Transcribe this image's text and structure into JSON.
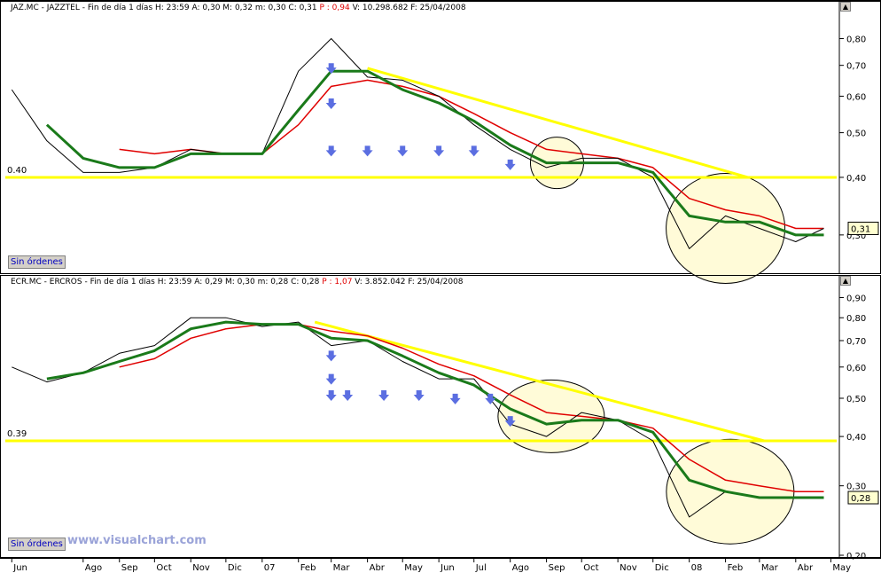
{
  "watermark": "www.visualchart.com",
  "chart_data": [
    {
      "type": "line",
      "title": "JAZ.MC - JAZZTEL - Fin de día 1 días",
      "ohlc": {
        "H": "23:59",
        "A": "0,30",
        "M": "0,32",
        "m": "0,30",
        "C": "0,31"
      },
      "P": "0,94",
      "V": "10.298.682",
      "F": "25/04/2008",
      "button": "Sin órdenes",
      "support_label": "0.40",
      "last_price": "0,31",
      "y_ticks": [
        "0,80",
        "0,70",
        "0,60",
        "0,50",
        "0,40",
        "0,30"
      ],
      "ylim": [
        0.25,
        0.92
      ],
      "log_scale": true,
      "grid": false,
      "colors": {
        "price": "#000000",
        "ma_fast": "#1a7a1a",
        "ma_slow": "#e00000",
        "trend": "#ffff00",
        "arrow": "#5b6ee1",
        "ellipse": "#fffbd8"
      },
      "x_dates": [
        "2006-06",
        "2006-07",
        "2006-08",
        "2006-09",
        "2006-10",
        "2006-11",
        "2006-12",
        "2007-01",
        "2007-02",
        "2007-03",
        "2007-04",
        "2007-05",
        "2007-06",
        "2007-07",
        "2007-08",
        "2007-09",
        "2007-10",
        "2007-11",
        "2007-12",
        "2008-01",
        "2008-02",
        "2008-03",
        "2008-04",
        "2008-04-25"
      ],
      "series": [
        {
          "values": [
            0.62,
            0.48,
            0.41,
            0.41,
            0.42,
            0.46,
            0.45,
            0.45,
            0.68,
            0.8,
            0.66,
            0.65,
            0.6,
            0.52,
            0.46,
            0.42,
            0.44,
            0.44,
            0.4,
            0.28,
            0.33,
            0.31,
            0.29,
            0.31
          ]
        },
        {
          "values": [
            null,
            0.52,
            0.44,
            0.42,
            0.42,
            0.45,
            0.45,
            0.45,
            0.56,
            0.68,
            0.68,
            0.62,
            0.58,
            0.53,
            0.47,
            0.43,
            0.43,
            0.43,
            0.41,
            0.33,
            0.32,
            0.32,
            0.3,
            0.3
          ]
        },
        {
          "values": [
            null,
            null,
            null,
            0.46,
            0.45,
            0.46,
            0.45,
            0.45,
            0.52,
            0.63,
            0.65,
            0.63,
            0.6,
            0.55,
            0.5,
            0.46,
            0.45,
            0.44,
            0.42,
            0.36,
            0.34,
            0.33,
            0.31,
            0.31
          ]
        }
      ],
      "trendline": [
        [
          "2007-04",
          0.69
        ],
        [
          "2008-02-20",
          0.4
        ]
      ],
      "support": 0.4,
      "arrows": [
        [
          "2007-03-01",
          0.68
        ],
        [
          "2007-03-01",
          0.57
        ],
        [
          "2007-03-01",
          0.45
        ],
        [
          "2007-04-01",
          0.45
        ],
        [
          "2007-05-01",
          0.45
        ],
        [
          "2007-06-01",
          0.45
        ],
        [
          "2007-07-01",
          0.45
        ],
        [
          "2007-08-01",
          0.42
        ]
      ],
      "ellipses": [
        [
          "2007-09-10",
          0.43,
          30,
          29
        ],
        [
          "2008-02-01",
          0.31,
          67,
          62
        ]
      ]
    },
    {
      "type": "line",
      "title": "ECR.MC - ERCROS - Fin de día 1 días",
      "ohlc": {
        "H": "23:59",
        "A": "0,29",
        "M": "0,30",
        "m": "0,28",
        "C": "0,28"
      },
      "P": "1,07",
      "V": "3.852.042",
      "F": "25/04/2008",
      "button": "Sin órdenes",
      "support_label": "0.39",
      "last_price": "0,28",
      "y_ticks": [
        "0,90",
        "0,80",
        "0,70",
        "0,60",
        "0,50",
        "0,40",
        "0,30",
        "0,20"
      ],
      "ylim": [
        0.2,
        0.97
      ],
      "log_scale": true,
      "grid": false,
      "colors": {
        "price": "#000000",
        "ma_fast": "#1a7a1a",
        "ma_slow": "#e00000",
        "trend": "#ffff00",
        "arrow": "#5b6ee1",
        "ellipse": "#fffbd8"
      },
      "x_dates": [
        "2006-06",
        "2006-07",
        "2006-08",
        "2006-09",
        "2006-10",
        "2006-11",
        "2006-12",
        "2007-01",
        "2007-02",
        "2007-03",
        "2007-04",
        "2007-05",
        "2007-06",
        "2007-07",
        "2007-08",
        "2007-09",
        "2007-10",
        "2007-11",
        "2007-12",
        "2008-01",
        "2008-02",
        "2008-03",
        "2008-04",
        "2008-04-25"
      ],
      "series": [
        {
          "values": [
            0.6,
            0.55,
            0.58,
            0.65,
            0.68,
            0.8,
            0.8,
            0.76,
            0.78,
            0.68,
            0.7,
            0.62,
            0.56,
            0.56,
            0.43,
            0.4,
            0.46,
            0.44,
            0.39,
            0.25,
            0.29,
            0.28,
            0.28,
            0.28
          ]
        },
        {
          "values": [
            null,
            0.56,
            0.58,
            0.62,
            0.66,
            0.75,
            0.78,
            0.77,
            0.77,
            0.71,
            0.7,
            0.64,
            0.58,
            0.54,
            0.47,
            0.43,
            0.44,
            0.44,
            0.41,
            0.31,
            0.29,
            0.28,
            0.28,
            0.28
          ]
        },
        {
          "values": [
            null,
            null,
            null,
            0.6,
            0.63,
            0.71,
            0.75,
            0.77,
            0.77,
            0.74,
            0.72,
            0.67,
            0.61,
            0.57,
            0.51,
            0.46,
            0.45,
            0.44,
            0.42,
            0.35,
            0.31,
            0.3,
            0.29,
            0.29
          ]
        }
      ],
      "trendline": [
        [
          "2007-02-15",
          0.78
        ],
        [
          "2008-03-05",
          0.39
        ]
      ],
      "support": 0.39,
      "arrows": [
        [
          "2007-03-01",
          0.63
        ],
        [
          "2007-03-01",
          0.55
        ],
        [
          "2007-03-01",
          0.5
        ],
        [
          "2007-03-15",
          0.5
        ],
        [
          "2007-04-15",
          0.5
        ],
        [
          "2007-05-15",
          0.5
        ],
        [
          "2007-06-15",
          0.49
        ],
        [
          "2007-07-15",
          0.49
        ],
        [
          "2007-08-01",
          0.43
        ]
      ],
      "ellipses": [
        [
          "2007-09-05",
          0.45,
          60,
          41
        ],
        [
          "2008-02-05",
          0.29,
          72,
          59
        ]
      ]
    }
  ],
  "x_axis": {
    "labels": [
      "Jun",
      "Ago",
      "Sep",
      "Oct",
      "Nov",
      "Dic",
      "07",
      "Feb",
      "Mar",
      "Abr",
      "May",
      "Jun",
      "Jul",
      "Ago",
      "Sep",
      "Oct",
      "Nov",
      "Dic",
      "08",
      "Feb",
      "Mar",
      "Abr",
      "May"
    ],
    "label_dates": [
      "2006-06",
      "2006-08",
      "2006-09",
      "2006-10",
      "2006-11",
      "2006-12",
      "2007-01",
      "2007-02",
      "2007-03",
      "2007-04",
      "2007-05",
      "2007-06",
      "2007-07",
      "2007-08",
      "2007-09",
      "2007-10",
      "2007-11",
      "2007-12",
      "2008-01",
      "2008-02",
      "2008-03",
      "2008-04",
      "2008-05"
    ]
  }
}
